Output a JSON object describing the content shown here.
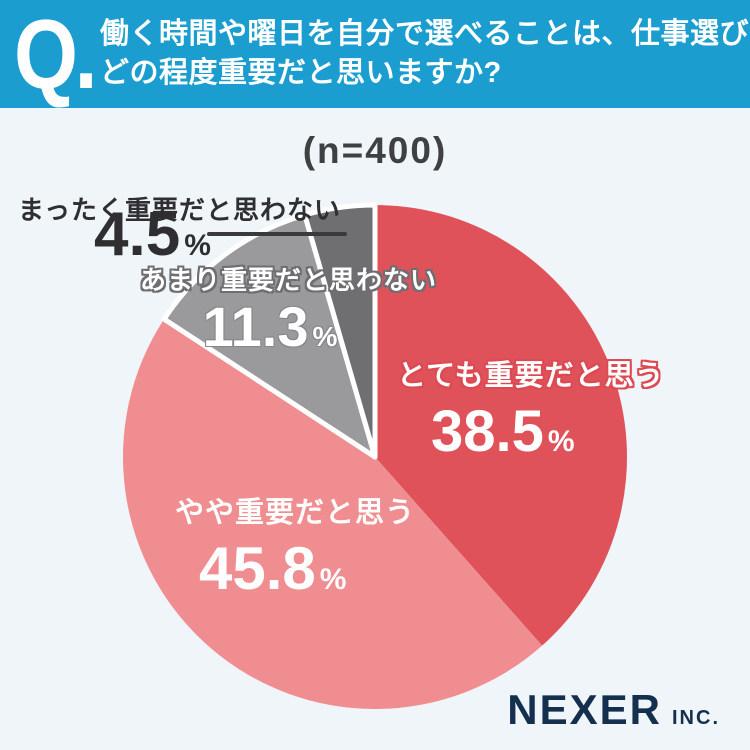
{
  "header": {
    "q_label": "Q.",
    "question_line1": "働く時間や曜日を自分で選べることは、仕事選びに",
    "question_line2": "どの程度重要だと思いますか?",
    "bg_color": "#1b9ecf"
  },
  "sample_label": "(n=400)",
  "chart_data": {
    "type": "pie",
    "title": "(n=400)",
    "start_angle_deg": -90,
    "direction": "clockwise",
    "percent_symbol": "%",
    "slices": [
      {
        "label": "とても重要だと思う",
        "value": 38.5,
        "value_label": "38.5",
        "color": "#e0525a",
        "white_stroke": false
      },
      {
        "label": "やや重要だと思う",
        "value": 45.8,
        "value_label": "45.8",
        "color": "#f08d91",
        "white_stroke": false
      },
      {
        "label": "あまり重要だと思わない",
        "value": 11.3,
        "value_label": "11.3",
        "color": "#9a9a9d",
        "white_stroke": true
      },
      {
        "label": "まったく重要だと思わない",
        "value": 4.5,
        "value_label": "4.5",
        "color": "#6f6f72",
        "white_stroke": true
      }
    ]
  },
  "footer": {
    "brand": "NEXER",
    "brand_suffix": "INC."
  }
}
